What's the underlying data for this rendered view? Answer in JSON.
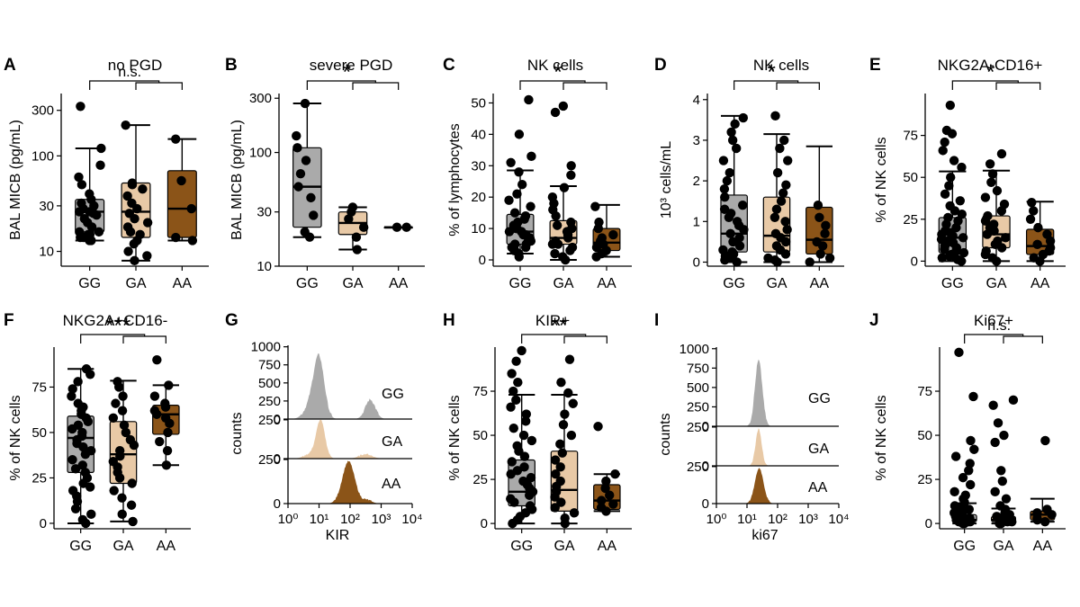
{
  "colors": {
    "GG": "#aaaaaa",
    "GA": "#e8c9a6",
    "AA": "#8b5418",
    "point": "#000000"
  },
  "chart_data": [
    {
      "panel": "A",
      "type": "box",
      "title": "no PGD",
      "ylabel": "BAL MICB (pg/mL)",
      "yscale": "log",
      "ylim": [
        7,
        450
      ],
      "yticks": [
        10,
        30,
        100,
        300
      ],
      "categories": [
        "GG",
        "GA",
        "AA"
      ],
      "boxes": [
        {
          "group": "GG",
          "min": 13,
          "q1": 16,
          "median": 26,
          "q3": 35,
          "max": 120
        },
        {
          "group": "GA",
          "min": 8,
          "q1": 14,
          "median": 26,
          "q3": 52,
          "max": 210
        },
        {
          "group": "AA",
          "min": 13,
          "q1": 14,
          "median": 28,
          "q3": 70,
          "max": 150
        }
      ],
      "points": {
        "GG": [
          13,
          13,
          14,
          14,
          15,
          15,
          16,
          16,
          18,
          20,
          22,
          24,
          25,
          26,
          26,
          28,
          30,
          32,
          35,
          40,
          50,
          60,
          80,
          120,
          330
        ],
        "GA": [
          8,
          9,
          10,
          12,
          13,
          15,
          16,
          18,
          20,
          22,
          25,
          28,
          32,
          38,
          45,
          50,
          52,
          210
        ],
        "AA": [
          13,
          14,
          28,
          55,
          150
        ]
      },
      "significance": {
        "label": "n.s.",
        "from": "GG",
        "to": [
          "GA",
          "AA"
        ]
      }
    },
    {
      "panel": "B",
      "type": "box",
      "title": "severe PGD",
      "ylabel": "BAL MICB (pg/mL)",
      "yscale": "log",
      "ylim": [
        10,
        330
      ],
      "yticks": [
        10,
        30,
        100,
        300
      ],
      "categories": [
        "GG",
        "GA",
        "AA"
      ],
      "boxes": [
        {
          "group": "GG",
          "min": 18,
          "q1": 22,
          "median": 50,
          "q3": 110,
          "max": 270
        },
        {
          "group": "GA",
          "min": 14,
          "q1": 19,
          "median": 24,
          "q3": 30,
          "max": 33
        },
        {
          "group": "AA",
          "min": 22,
          "q1": 22,
          "median": 22,
          "q3": 22,
          "max": 22
        }
      ],
      "points": {
        "GG": [
          18,
          20,
          28,
          40,
          50,
          65,
          85,
          110,
          140,
          270
        ],
        "GA": [
          14,
          18,
          22,
          26,
          30,
          33
        ],
        "AA": [
          22,
          22
        ]
      },
      "significance": {
        "label": "*",
        "from": "GG",
        "to": [
          "GA",
          "AA"
        ]
      }
    },
    {
      "panel": "C",
      "type": "box",
      "title": "NK cells",
      "ylabel": "% of lymphocytes",
      "yscale": "linear",
      "ylim": [
        -2,
        53
      ],
      "yticks": [
        0,
        10,
        20,
        30,
        40,
        50
      ],
      "categories": [
        "GG",
        "GA",
        "AA"
      ],
      "boxes": [
        {
          "group": "GG",
          "min": 2,
          "q1": 5,
          "median": 9,
          "q3": 14.5,
          "max": 28.5
        },
        {
          "group": "GA",
          "min": 0,
          "q1": 5,
          "median": 7,
          "q3": 12.5,
          "max": 23.5
        },
        {
          "group": "AA",
          "min": 1,
          "q1": 3,
          "median": 5.5,
          "q3": 10,
          "max": 17.5
        }
      ],
      "points": {
        "GG": [
          1,
          2,
          3,
          3,
          4,
          4,
          5,
          5,
          6,
          6,
          7,
          7,
          8,
          8,
          9,
          9,
          10,
          10,
          11,
          12,
          13,
          14,
          15,
          17,
          19,
          21,
          24,
          28,
          31,
          33,
          40,
          51
        ],
        "GA": [
          0,
          1,
          2,
          3,
          4,
          5,
          5,
          6,
          7,
          8,
          9,
          10,
          11,
          12,
          14,
          16,
          18,
          20,
          23,
          27,
          30,
          47,
          49
        ],
        "AA": [
          1,
          2,
          3,
          4,
          5,
          6,
          7,
          8,
          10,
          12,
          17
        ]
      },
      "significance": {
        "label": "*",
        "from": "GG",
        "to": [
          "GA",
          "AA"
        ]
      }
    },
    {
      "panel": "D",
      "type": "box",
      "title": "NK cells",
      "ylabel": "10³ cells/mL",
      "yscale": "linear",
      "ylim": [
        -0.1,
        4.15
      ],
      "yticks": [
        0,
        1,
        2,
        3,
        4
      ],
      "categories": [
        "GG",
        "GA",
        "AA"
      ],
      "boxes": [
        {
          "group": "GG",
          "min": 0,
          "q1": 0.25,
          "median": 0.7,
          "q3": 1.65,
          "max": 3.6
        },
        {
          "group": "GA",
          "min": 0,
          "q1": 0.25,
          "median": 0.65,
          "q3": 1.6,
          "max": 3.15
        },
        {
          "group": "AA",
          "min": 0,
          "q1": 0.2,
          "median": 0.55,
          "q3": 1.35,
          "max": 2.85
        }
      ],
      "points": {
        "GG": [
          0,
          0.05,
          0.1,
          0.15,
          0.2,
          0.25,
          0.3,
          0.4,
          0.5,
          0.6,
          0.7,
          0.8,
          0.9,
          1.0,
          1.1,
          1.2,
          1.3,
          1.4,
          1.6,
          1.8,
          2.0,
          2.2,
          2.5,
          2.8,
          3.0,
          3.2,
          3.4,
          3.55
        ],
        "GA": [
          0,
          0.05,
          0.1,
          0.2,
          0.3,
          0.4,
          0.5,
          0.6,
          0.7,
          0.8,
          1.0,
          1.1,
          1.3,
          1.5,
          1.7,
          1.9,
          2.2,
          2.5,
          2.8,
          3.0,
          3.6
        ],
        "AA": [
          0,
          0.1,
          0.2,
          0.4,
          0.5,
          0.7,
          0.9,
          1.1,
          1.4
        ]
      },
      "significance": {
        "label": "*",
        "from": "GG",
        "to": [
          "GA",
          "AA"
        ]
      }
    },
    {
      "panel": "E",
      "type": "box",
      "title": "NKG2A-CD16+",
      "ylabel": "% of NK cells",
      "yscale": "linear",
      "ylim": [
        -3,
        100
      ],
      "yticks": [
        0,
        25,
        50,
        75
      ],
      "categories": [
        "GG",
        "GA",
        "AA"
      ],
      "boxes": [
        {
          "group": "GG",
          "min": 0,
          "q1": 5,
          "median": 14,
          "q3": 26,
          "max": 53.5
        },
        {
          "group": "GA",
          "min": 0,
          "q1": 8,
          "median": 16,
          "q3": 27,
          "max": 54
        },
        {
          "group": "AA",
          "min": 0,
          "q1": 4,
          "median": 9,
          "q3": 19,
          "max": 35.5
        }
      ],
      "points": {
        "GG": [
          0,
          1,
          2,
          3,
          4,
          5,
          6,
          7,
          8,
          9,
          10,
          11,
          12,
          13,
          14,
          15,
          16,
          17,
          18,
          20,
          22,
          24,
          26,
          28,
          30,
          33,
          36,
          40,
          45,
          50,
          56,
          60,
          66,
          71,
          76,
          78,
          93
        ],
        "GA": [
          0,
          2,
          4,
          6,
          8,
          10,
          12,
          14,
          16,
          18,
          20,
          22,
          24,
          27,
          30,
          34,
          38,
          42,
          47,
          52,
          58,
          64
        ],
        "AA": [
          0,
          2,
          4,
          6,
          8,
          10,
          12,
          16,
          20,
          25,
          30,
          35
        ]
      },
      "significance": {
        "label": "*",
        "from": "GG",
        "to": [
          "GA",
          "AA"
        ]
      }
    },
    {
      "panel": "F",
      "type": "box",
      "title": "NKG2A+CD16-",
      "ylabel": "% of NK cells",
      "yscale": "linear",
      "ylim": [
        -3,
        97
      ],
      "yticks": [
        0,
        25,
        50,
        75
      ],
      "categories": [
        "GG",
        "GA",
        "AA"
      ],
      "boxes": [
        {
          "group": "GG",
          "min": 0,
          "q1": 28,
          "median": 47,
          "q3": 59,
          "max": 85
        },
        {
          "group": "GA",
          "min": 1,
          "q1": 22,
          "median": 38,
          "q3": 56,
          "max": 78.5
        },
        {
          "group": "AA",
          "min": 32,
          "q1": 49,
          "median": 60,
          "q3": 65,
          "max": 76
        }
      ],
      "points": {
        "GG": [
          0,
          2,
          5,
          8,
          12,
          15,
          18,
          20,
          22,
          25,
          28,
          30,
          32,
          35,
          38,
          40,
          42,
          44,
          46,
          48,
          50,
          52,
          54,
          56,
          58,
          60,
          62,
          64,
          66,
          70,
          74,
          78,
          82,
          85
        ],
        "GA": [
          1,
          5,
          10,
          14,
          18,
          22,
          25,
          28,
          31,
          34,
          37,
          40,
          43,
          46,
          50,
          54,
          58,
          62,
          66,
          70,
          75,
          78
        ],
        "AA": [
          32,
          40,
          45,
          50,
          55,
          58,
          60,
          62,
          64,
          66,
          70,
          76,
          90
        ]
      },
      "significance": {
        "label": "***",
        "from": "GG",
        "to": [
          "GA",
          "AA"
        ]
      }
    },
    {
      "panel": "G",
      "type": "histogram",
      "xlabel": "KIR",
      "ylabel": "counts",
      "xscale": "log",
      "xlim": [
        1,
        10000
      ],
      "xticks": [
        "10⁰",
        "10¹",
        "10²",
        "10³",
        "10⁴"
      ],
      "tracks": [
        {
          "group": "GG",
          "ymax": 1000,
          "yticks": [
            0,
            250,
            500,
            750,
            1000
          ]
        },
        {
          "group": "GA",
          "ymax": 250,
          "yticks": [
            0,
            250
          ]
        },
        {
          "group": "AA",
          "ymax": 250,
          "yticks": [
            0,
            250
          ]
        }
      ]
    },
    {
      "panel": "H",
      "type": "box",
      "title": "KIR+",
      "ylabel": "% of NK cells",
      "yscale": "linear",
      "ylim": [
        -3,
        100
      ],
      "yticks": [
        0,
        25,
        50,
        75
      ],
      "categories": [
        "GG",
        "GA",
        "AA"
      ],
      "boxes": [
        {
          "group": "GG",
          "min": 0,
          "q1": 10,
          "median": 18,
          "q3": 36,
          "max": 73
        },
        {
          "group": "GA",
          "min": 0,
          "q1": 7,
          "median": 19,
          "q3": 41,
          "max": 73
        },
        {
          "group": "AA",
          "min": 7,
          "q1": 8,
          "median": 13,
          "q3": 22,
          "max": 28
        }
      ],
      "points": {
        "GG": [
          0,
          2,
          4,
          6,
          8,
          10,
          12,
          14,
          16,
          18,
          20,
          22,
          24,
          26,
          28,
          30,
          32,
          35,
          38,
          41,
          44,
          47,
          50,
          54,
          58,
          62,
          66,
          70,
          75,
          80,
          85,
          92,
          98
        ],
        "GA": [
          0,
          3,
          6,
          9,
          12,
          15,
          18,
          21,
          24,
          28,
          32,
          36,
          40,
          45,
          50,
          56,
          62,
          68,
          74,
          80,
          93
        ],
        "AA": [
          7,
          9,
          11,
          13,
          16,
          20,
          24,
          28,
          55
        ]
      },
      "significance": {
        "label": "**",
        "from": "GG",
        "to": [
          "GA",
          "AA"
        ]
      }
    },
    {
      "panel": "I",
      "type": "histogram",
      "xlabel": "ki67",
      "ylabel": "counts",
      "xscale": "log",
      "xlim": [
        1,
        10000
      ],
      "xticks": [
        "10⁰",
        "10¹",
        "10²",
        "10³",
        "10⁴"
      ],
      "tracks": [
        {
          "group": "GG",
          "ymax": 1000,
          "yticks": [
            0,
            250,
            500,
            750,
            1000
          ]
        },
        {
          "group": "GA",
          "ymax": 250,
          "yticks": [
            0,
            250
          ]
        },
        {
          "group": "AA",
          "ymax": 250,
          "yticks": [
            0,
            250
          ]
        }
      ]
    },
    {
      "panel": "J",
      "type": "box",
      "title": "Ki67+",
      "ylabel": "% of NK cells",
      "yscale": "linear",
      "ylim": [
        -3,
        100
      ],
      "yticks": [
        0,
        25,
        50,
        75
      ],
      "categories": [
        "GG",
        "GA",
        "AA"
      ],
      "boxes": [
        {
          "group": "GG",
          "min": 0,
          "q1": 1,
          "median": 2,
          "q3": 5,
          "max": 11.5
        },
        {
          "group": "GA",
          "min": 0,
          "q1": 1,
          "median": 2,
          "q3": 4,
          "max": 8.5
        },
        {
          "group": "AA",
          "min": 1,
          "q1": 2,
          "median": 5,
          "q3": 7,
          "max": 14
        }
      ],
      "points": {
        "GG": [
          0,
          0,
          1,
          1,
          1,
          2,
          2,
          2,
          3,
          3,
          4,
          4,
          5,
          6,
          7,
          8,
          9,
          10,
          12,
          14,
          16,
          18,
          22,
          26,
          30,
          34,
          38,
          42,
          47,
          72,
          97
        ],
        "GA": [
          0,
          0,
          1,
          1,
          2,
          2,
          3,
          3,
          4,
          5,
          6,
          8,
          10,
          14,
          18,
          24,
          30,
          46,
          50,
          57,
          67,
          70
        ],
        "AA": [
          1,
          2,
          3,
          5,
          6,
          8,
          47
        ]
      },
      "significance": {
        "label": "n.s.",
        "from": "GG",
        "to": [
          "GA",
          "AA"
        ]
      }
    }
  ]
}
